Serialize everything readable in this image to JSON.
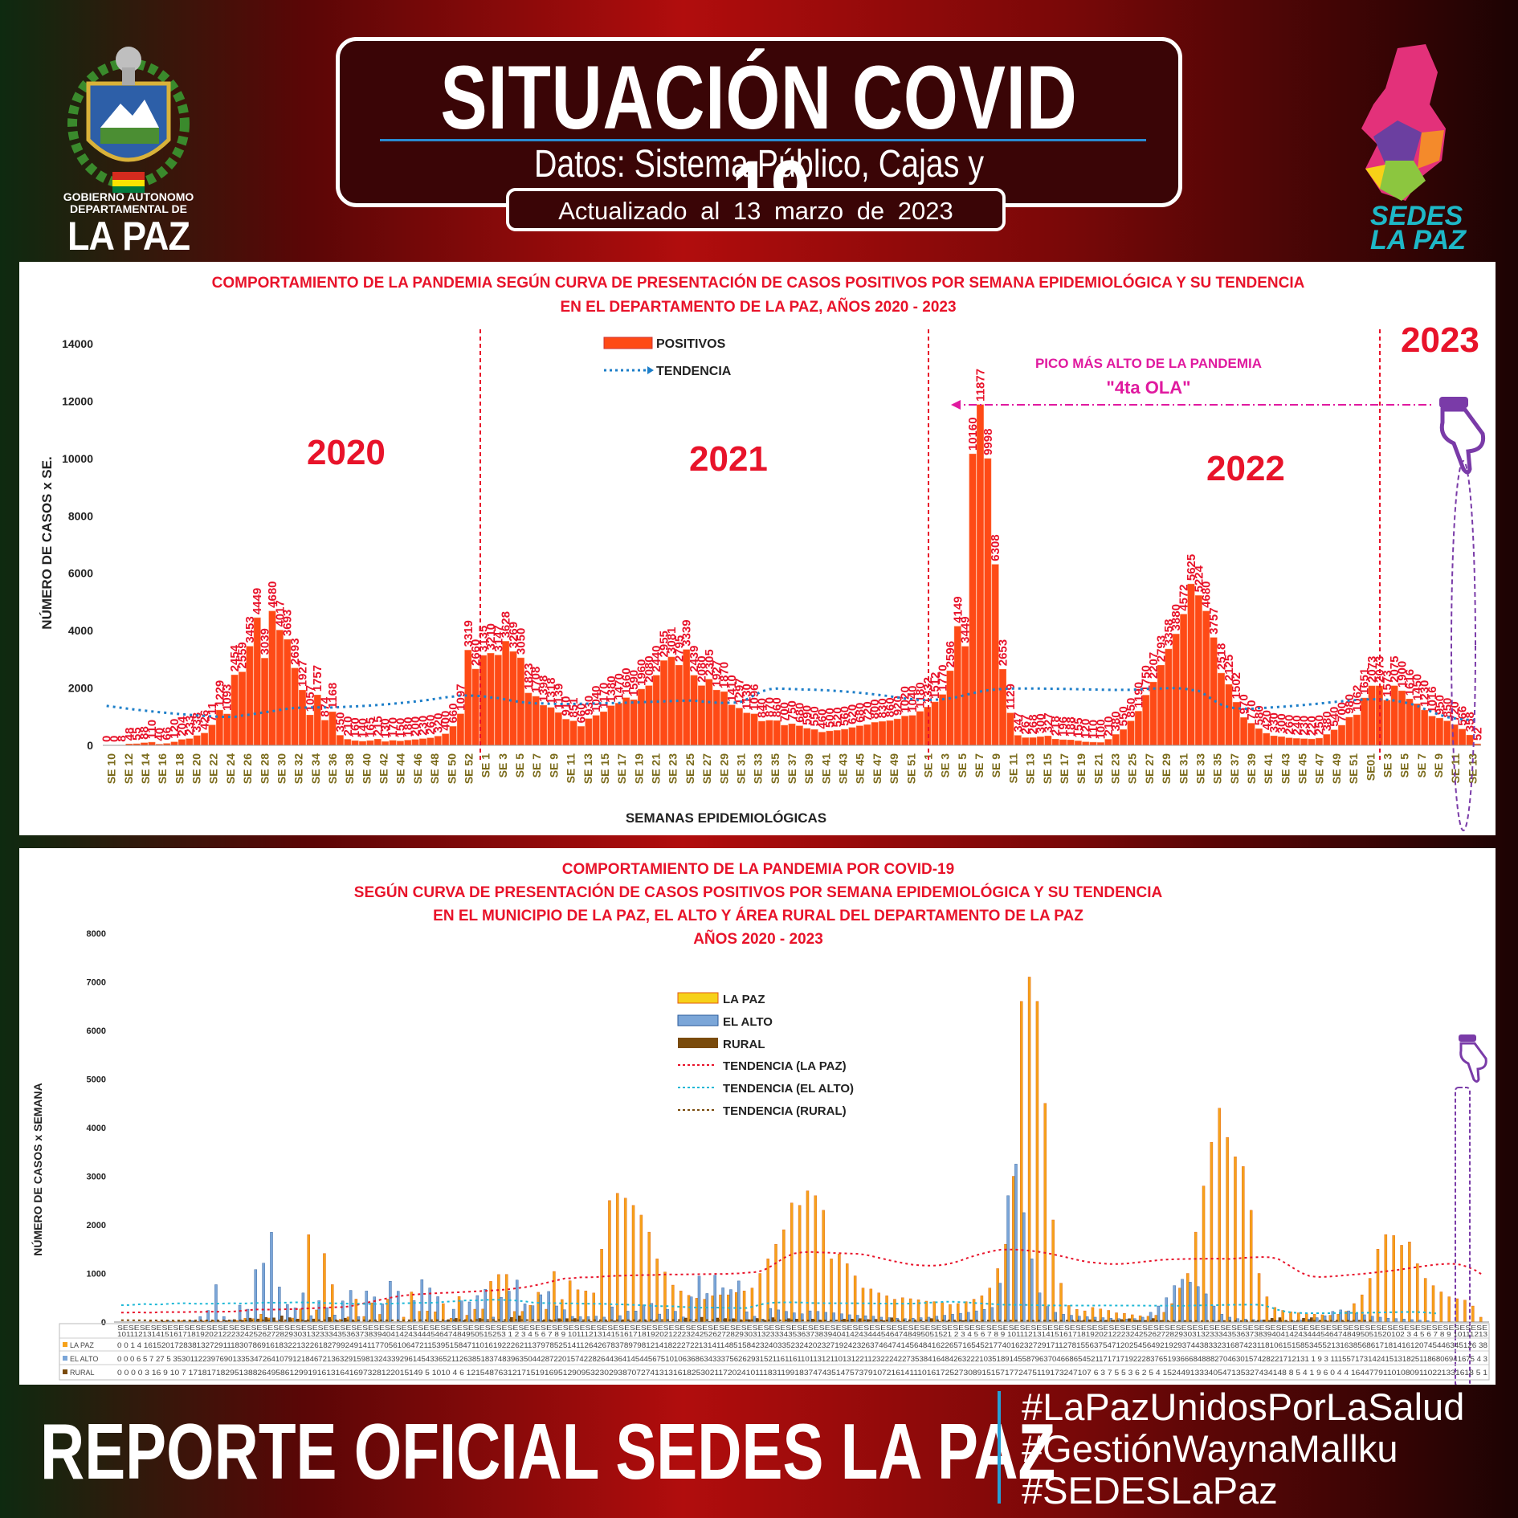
{
  "header": {
    "title": "SITUACIÓN COVID -19",
    "subtitle": "Datos: Sistema Público, Cajas y Establecimientos Privados",
    "updated": "Actualizado  al  13  marzo  de  2023"
  },
  "logos": {
    "gov_line1": "GOBIERNO AUTONOMO",
    "gov_line2": "DEPARTAMENTAL DE",
    "gov_line3": "LA PAZ",
    "sedes_line1": "SEDES",
    "sedes_line2": "LA PAZ"
  },
  "colors": {
    "bar_orange": "#fe4a16",
    "label_red": "#e8132a",
    "pink": "#e01a9f",
    "trend_blue": "#1e7fc9",
    "purple": "#7a3ba8"
  },
  "chart_data": [
    {
      "type": "bar",
      "title_line1": "COMPORTAMIENTO DE LA PANDEMIA SEGÚN CURVA DE PRESENTACIÓN DE CASOS POSITIVOS POR SEMANA EPIDEMIOLÓGICA Y SU TENDENCIA",
      "title_line2": "EN EL DEPARTAMENTO DE LA PAZ, AÑOS 2020 - 2023",
      "xlabel": "SEMANAS EPIDEMIOLÓGICAS",
      "ylabel": "NÚMERO DE CASOS x SE.",
      "ylim": [
        0,
        14000
      ],
      "yticks": [
        0,
        2000,
        4000,
        6000,
        8000,
        10000,
        12000,
        14000
      ],
      "legend": [
        "POSITIVOS",
        "TENDENCIA"
      ],
      "year_labels": [
        "2020",
        "2021",
        "2022",
        "2023"
      ],
      "annotation_line1": "PICO MÁS ALTO DE LA PANDEMIA",
      "annotation_line2": "\"4ta OLA\"",
      "grid": false,
      "x_tick_labels": [
        "SE 10",
        "SE 12",
        "SE 14",
        "SE 16",
        "SE 18",
        "SE 20",
        "SE 22",
        "SE 24",
        "SE 26",
        "SE 28",
        "SE 30",
        "SE 32",
        "SE 34",
        "SE 36",
        "SE 38",
        "SE 40",
        "SE 42",
        "SE 44",
        "SE 46",
        "SE 48",
        "SE 50",
        "SE 52",
        "SE 1",
        "SE 3",
        "SE 5",
        "SE 7",
        "SE 9",
        "SE 11",
        "SE 13",
        "SE 15",
        "SE 17",
        "SE 19",
        "SE 21",
        "SE 23",
        "SE 25",
        "SE 27",
        "SE 29",
        "SE 31",
        "SE 33",
        "SE 35",
        "SE 37",
        "SE 39",
        "SE 41",
        "SE 43",
        "SE 45",
        "SE 47",
        "SE 49",
        "SE 51",
        "SE 1",
        "SE 3",
        "SE 5",
        "SE 7",
        "SE 9",
        "SE 11",
        "SE 13",
        "SE 15",
        "SE 17",
        "SE 19",
        "SE 21",
        "SE 23",
        "SE 25",
        "SE 27",
        "SE 29",
        "SE 31",
        "SE 33",
        "SE 35",
        "SE 37",
        "SE 39",
        "SE 41",
        "SE 43",
        "SE 45",
        "SE 47",
        "SE 49",
        "SE 51",
        "SE01",
        "SE 3",
        "SE 5",
        "SE 7",
        "SE 9",
        "SE 11",
        "SE 13"
      ],
      "values": [
        0,
        0,
        8,
        48,
        55,
        88,
        110,
        40,
        66,
        120,
        204,
        233,
        338,
        426,
        711,
        1229,
        1093,
        2454,
        2559,
        3453,
        4449,
        3039,
        4680,
        4017,
        3693,
        2693,
        1927,
        1057,
        1757,
        874,
        1168,
        350,
        210,
        160,
        140,
        165,
        215,
        130,
        170,
        150,
        180,
        200,
        230,
        260,
        320,
        400,
        660,
        1097,
        3319,
        2660,
        3135,
        3210,
        3147,
        3628,
        3269,
        3050,
        1823,
        1708,
        1398,
        1318,
        1139,
        910,
        851,
        660,
        930,
        1040,
        1170,
        1380,
        1470,
        1660,
        1590,
        1960,
        2080,
        2440,
        2955,
        3081,
        2795,
        3339,
        2439,
        2080,
        2305,
        1927,
        1870,
        1410,
        1297,
        1130,
        1096,
        840,
        870,
        860,
        700,
        750,
        680,
        590,
        550,
        460,
        500,
        520,
        560,
        620,
        680,
        720,
        800,
        830,
        860,
        920,
        1020,
        1040,
        1180,
        1332,
        1512,
        1770,
        2596,
        4149,
        3449,
        10160,
        11877,
        9998,
        6308,
        2653,
        1129,
        347,
        267,
        268,
        300,
        327,
        218,
        196,
        188,
        155,
        120,
        110,
        100,
        210,
        380,
        550,
        850,
        1190,
        1750,
        2207,
        2793,
        3358,
        3880,
        4572,
        5625,
        5224,
        4680,
        3757,
        2518,
        2125,
        1502,
        970,
        770,
        580,
        420,
        330,
        300,
        260,
        240,
        230,
        220,
        250,
        380,
        540,
        700,
        980,
        1062,
        1651,
        2073,
        2073,
        1573,
        2075,
        1900,
        1616,
        1450,
        1230,
        1016,
        950,
        850,
        720,
        566,
        358,
        52
      ]
    },
    {
      "type": "bar",
      "title_line1": "COMPORTAMIENTO DE LA PANDEMIA POR COVID-19",
      "title_line2": "SEGÚN CURVA DE PRESENTACIÓN DE CASOS POSITIVOS POR SEMANA EPIDEMIOLÓGICA Y SU TENDENCIA",
      "title_line3": "EN EL  MUNICIPIO DE LA PAZ, EL ALTO Y ÁREA RURAL DEL DEPARTAMENTO DE LA PAZ",
      "title_line4": "AÑOS 2020 - 2023",
      "ylabel": "NÚMERO DE CASOS x SEMANA",
      "ylim": [
        0,
        8000
      ],
      "yticks": [
        0,
        1000,
        2000,
        3000,
        4000,
        5000,
        6000,
        7000,
        8000
      ],
      "grid": false,
      "series": [
        {
          "name": "LA PAZ",
          "color": "#f6a21a",
          "values": [
            0,
            0,
            1,
            4,
            16,
            15,
            20,
            17,
            28,
            38,
            13,
            27,
            29,
            11,
            18,
            30,
            78,
            69,
            161,
            83,
            22,
            13,
            82,
            268,
            1799,
            249,
            1411,
            770,
            56,
            106,
            472,
            115,
            395,
            158,
            471,
            6,
            101,
            619,
            222,
            226,
            211,
            379,
            78,
            525,
            141,
            264,
            267,
            837,
            978,
            981,
            218,
            221,
            344,
            613,
            264,
            1041,
            464,
            850,
            664,
            640,
            598,
            1500,
            2500,
            2650,
            2550,
            2400,
            2200,
            1850,
            1300,
            1030,
            760,
            640,
            550,
            490,
            470,
            540,
            560,
            560,
            610,
            640,
            700,
            1000,
            1300,
            1600,
            1900,
            2450,
            2400,
            2700,
            2600,
            2300,
            1300,
            1400,
            1200,
            950,
            700,
            680,
            600,
            540,
            470,
            500,
            480,
            460,
            430,
            420,
            400,
            360,
            380,
            420,
            470,
            540,
            700,
            1100,
            1600,
            3000,
            6600,
            7100,
            6600,
            4500,
            2100,
            800,
            340,
            260,
            230,
            300,
            270,
            240,
            190,
            180,
            150,
            130,
            120,
            140,
            200,
            380,
            700,
            1000,
            1850,
            2800,
            3700,
            4400,
            3800,
            3400,
            3200,
            2300,
            1000,
            520,
            300,
            240,
            210,
            190,
            170,
            160,
            150,
            140,
            160,
            220,
            380,
            560,
            900,
            1500,
            1800,
            1780,
            1580,
            1650,
            1200,
            900,
            750,
            620,
            520,
            480,
            450,
            330,
            100
          ]
        },
        {
          "name": "EL ALTO",
          "color": "#7ba6d8",
          "values": [
            0,
            0,
            0,
            6,
            5,
            7,
            27,
            5,
            35,
            30,
            112,
            239,
            769,
            113,
            35,
            347,
            264,
            1079,
            1212,
            1846,
            721,
            363,
            291,
            598,
            132,
            439,
            296,
            145,
            433,
            652,
            112,
            638,
            518,
            374,
            839,
            635,
            0,
            442,
            872,
            701,
            522,
            28,
            264,
            436,
            414,
            545,
            675,
            101,
            510,
            636,
            863,
            374,
            337,
            562,
            629,
            331,
            252,
            116,
            110,
            113,
            121,
            101,
            312,
            132,
            224,
            227,
            353,
            384,
            164,
            263,
            222,
            103,
            518,
            945,
            587,
            963,
            704,
            668,
            845,
            212,
            118,
            60,
            280,
            250,
            220,
            190,
            170,
            230,
            220,
            200,
            190,
            170,
            150,
            140,
            130,
            120,
            100,
            90,
            80,
            70,
            80,
            90,
            100,
            120,
            140,
            160,
            180,
            200,
            230,
            260,
            300,
            800,
            2600,
            3250,
            2250,
            1300,
            600,
            320,
            200,
            160,
            140,
            120,
            110,
            100,
            90,
            80,
            70,
            60,
            70,
            100,
            200,
            330,
            500,
            750,
            880,
            820,
            730,
            580,
            330,
            160,
            100,
            70,
            60,
            50,
            40,
            30,
            30,
            30,
            30,
            40,
            60,
            90,
            130,
            220,
            250,
            230,
            180,
            150,
            120,
            100,
            80,
            70,
            60,
            50,
            40,
            30,
            10
          ]
        },
        {
          "name": "RURAL",
          "color": "#7a4b0c",
          "values": [
            0,
            0,
            0,
            0,
            3,
            16,
            9,
            10,
            7,
            17,
            18,
            17,
            18,
            29,
            51,
            38,
            82,
            64,
            95,
            86,
            129,
            91,
            61,
            31,
            64,
            16,
            97,
            32,
            81,
            22,
            0,
            15,
            14,
            9,
            5,
            10,
            10,
            4,
            6,
            12,
            15,
            48,
            76,
            31,
            21,
            75,
            15,
            19,
            16,
            95,
            129,
            0,
            9,
            29,
            38,
            70,
            72,
            74,
            13,
            13,
            16,
            18,
            25,
            30,
            21,
            17,
            20,
            24,
            10,
            11,
            11,
            83,
            11,
            99,
            11,
            83,
            74,
            71,
            43,
            51,
            75,
            37,
            91,
            0,
            72,
            61,
            0,
            61,
            41,
            11,
            0,
            61,
            61,
            72,
            52,
            57,
            30,
            89,
            15,
            15,
            17,
            15,
            73,
            15,
            19,
            17,
            32,
            47,
            10,
            7,
            6,
            3,
            7,
            5,
            5,
            3,
            6,
            2,
            5,
            4,
            15,
            24,
            49,
            13,
            33,
            40,
            54,
            71,
            35,
            32,
            74,
            34,
            14,
            8,
            8,
            5,
            4,
            1,
            9,
            6,
            0,
            4,
            4,
            16,
            44,
            77,
            91,
            10,
            10,
            80,
            91,
            10,
            22,
            13,
            16,
            18,
            5,
            1,
            0
          ]
        }
      ],
      "legend": [
        "LA PAZ",
        "EL ALTO",
        "RURAL",
        "TENDENCIA (LA PAZ)",
        "TENDENCIA (EL ALTO)",
        "TENDENCIA (RURAL)"
      ],
      "table_row_labels": [
        "LA PAZ",
        "EL ALTO",
        "RURAL"
      ],
      "table_header": "SESESESESESESESESESESESESESESESESESESESESESESESESESESESESESESESESESESESESESESESESESESESESESESESESESESESESESESESESESESESESESESESESESESESESESESESESESESESESESESESESESESESESESESESESESESESESESESESESESESESESESESESESESESESESESESESESESESESESESESESESESESE",
      "table_weeks": "1011121314151617181920212223242526272829303132333435363738394041424344454647484950515253 1 2 3 4 5 6 7 8 9 101112131415161718192021222324252627282930313233343536373839404142434445464748495051521 2 3 4 5 6 7 8 9 101112131415161718192021222324252627282930313233343536373839404142434445464748495051520102 3 4 5 6 7 8 9 10111213",
      "table_row_la_paz": "0 0 1 4 1615201728381327291118307869161832213226182799249141177056106472115395158471101619222621137978525141126426783789798121418222722131411485158423240335232420232719242326374647414564841622657165452177401623272917112781556375471202545649219293744383323168742311810615158534552131638568617181416120745446345126 38",
      "table_row_el_alto": "0 0 0 6 5 7 27 5 35301122397690133534726410791218467213632915981324339296145433652112638518374839635044287220157422826443641454456751010636863433375626293152116116110113121101312211232224227353841648426322210351891455879637046686545211717171922283765193666848882704630157428221712131 1 9 3 1115571731424151318251186806941675 4 3",
      "table_row_rural": "0 0 0 0 3 16 9 10 7 171817182951388264958612991916131641697328122015149 5 1010 4 6 12154876312171519169512909532302938707274131316182530211720241011183119918374743514757379107216141110161725273089151571772475119173247107 6 3 7 5 5 3 6 2 5 4 152449133340547135327434148 8 5 4 1 9 6 0 4 4 164477911010809110221331618 5 1"
    }
  ],
  "footer": {
    "title": "REPORTE OFICIAL SEDES LA PAZ",
    "hashtags": [
      "#LaPazUnidosPorLaSalud",
      "#GestiónWaynaMallku",
      "#SEDESLaPaz"
    ]
  }
}
